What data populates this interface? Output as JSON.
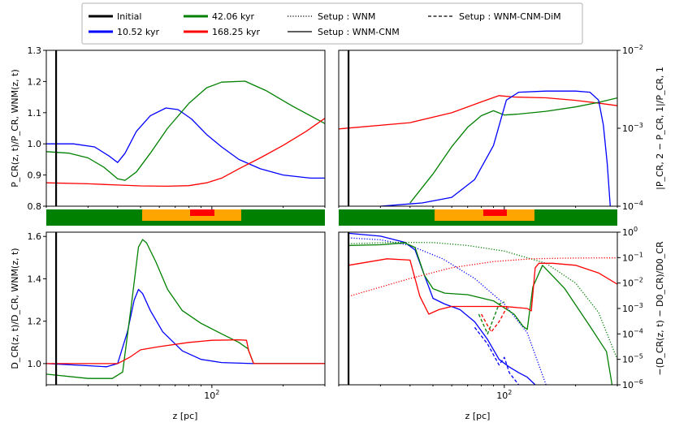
{
  "legend": {
    "entries": [
      {
        "label": "Initial",
        "color": "#000000",
        "style": "solid-thick"
      },
      {
        "label": "10.52 kyr",
        "color": "#0000ff",
        "style": "solid-thick"
      },
      {
        "label": "42.06 kyr",
        "color": "#008000",
        "style": "solid-thick"
      },
      {
        "label": "168.25 kyr",
        "color": "#ff0000",
        "style": "solid-thick"
      },
      {
        "label": "Setup : WNM",
        "color": "#000000",
        "style": "dotted"
      },
      {
        "label": "Setup : WNM-CNM",
        "color": "#000000",
        "style": "solid"
      },
      {
        "label": "Setup : WNM-CNM-DiM",
        "color": "#000000",
        "style": "dashed"
      }
    ]
  },
  "phase_bar": {
    "label_colors": {
      "wnm": "#008000",
      "cnm": "#ffa500",
      "dim": "#ff0000"
    }
  },
  "chart_data": [
    {
      "id": "top-left",
      "type": "line",
      "xscale": "log",
      "xlim": [
        20,
        300
      ],
      "ylim": [
        0.8,
        1.3
      ],
      "ylabel": "P_CR(z, t)/P_CR, WNM(z, t)",
      "yticks": [
        "0.8",
        "0.9",
        "1.0",
        "1.1",
        "1.2",
        "1.3"
      ],
      "initial_z": 22,
      "series": [
        {
          "name": "10.52 kyr",
          "color": "#0000ff",
          "points": [
            [
              20,
              1.0
            ],
            [
              26,
              1.0
            ],
            [
              32,
              0.99
            ],
            [
              37,
              0.96
            ],
            [
              40,
              0.94
            ],
            [
              43,
              0.97
            ],
            [
              48,
              1.04
            ],
            [
              55,
              1.09
            ],
            [
              64,
              1.115
            ],
            [
              72,
              1.11
            ],
            [
              82,
              1.08
            ],
            [
              95,
              1.03
            ],
            [
              110,
              0.99
            ],
            [
              130,
              0.95
            ],
            [
              160,
              0.92
            ],
            [
              200,
              0.9
            ],
            [
              260,
              0.89
            ],
            [
              300,
              0.89
            ]
          ]
        },
        {
          "name": "42.06 kyr",
          "color": "#008000",
          "points": [
            [
              20,
              0.975
            ],
            [
              25,
              0.97
            ],
            [
              30,
              0.955
            ],
            [
              35,
              0.925
            ],
            [
              40,
              0.888
            ],
            [
              43,
              0.883
            ],
            [
              48,
              0.91
            ],
            [
              55,
              0.97
            ],
            [
              65,
              1.05
            ],
            [
              80,
              1.13
            ],
            [
              95,
              1.18
            ],
            [
              110,
              1.198
            ],
            [
              138,
              1.201
            ],
            [
              170,
              1.17
            ],
            [
              220,
              1.12
            ],
            [
              300,
              1.065
            ]
          ]
        },
        {
          "name": "168.25 kyr",
          "color": "#ff0000",
          "points": [
            [
              20,
              0.875
            ],
            [
              30,
              0.872
            ],
            [
              40,
              0.868
            ],
            [
              50,
              0.865
            ],
            [
              65,
              0.864
            ],
            [
              80,
              0.866
            ],
            [
              95,
              0.875
            ],
            [
              110,
              0.89
            ],
            [
              130,
              0.92
            ],
            [
              160,
              0.955
            ],
            [
              200,
              0.995
            ],
            [
              250,
              1.04
            ],
            [
              300,
              1.082
            ]
          ]
        }
      ]
    },
    {
      "id": "top-right",
      "type": "line",
      "xscale": "log",
      "yscale": "log",
      "xlim": [
        20,
        300
      ],
      "ylim": [
        0.0001,
        0.01
      ],
      "ylabel": "|P_CR, 2 − P_CR, 1|/P_CR, 1",
      "yticks": [
        "10^-4",
        "10^-3",
        "10^-2"
      ],
      "initial_z": 22,
      "series": [
        {
          "name": "168.25 kyr",
          "color": "#ff0000",
          "points": [
            [
              20,
              0.00098
            ],
            [
              40,
              0.00118
            ],
            [
              60,
              0.00158
            ],
            [
              80,
              0.00218
            ],
            [
              95,
              0.00262
            ],
            [
              110,
              0.00252
            ],
            [
              150,
              0.00246
            ],
            [
              200,
              0.00228
            ],
            [
              260,
              0.00207
            ],
            [
              300,
              0.00195
            ]
          ]
        },
        {
          "name": "42.06 kyr",
          "color": "#008000",
          "points": [
            [
              40,
              0.00011
            ],
            [
              50,
              0.00026
            ],
            [
              60,
              0.00058
            ],
            [
              70,
              0.00103
            ],
            [
              80,
              0.00145
            ],
            [
              90,
              0.00168
            ],
            [
              100,
              0.00148
            ],
            [
              115,
              0.00152
            ],
            [
              150,
              0.00165
            ],
            [
              200,
              0.00188
            ],
            [
              250,
              0.00215
            ],
            [
              300,
              0.00245
            ]
          ]
        },
        {
          "name": "10.52 kyr",
          "color": "#0000ff",
          "points": [
            [
              30,
              0.0001
            ],
            [
              45,
              0.00011
            ],
            [
              60,
              0.00013
            ],
            [
              75,
              0.00022
            ],
            [
              90,
              0.0006
            ],
            [
              102,
              0.0023
            ],
            [
              115,
              0.0029
            ],
            [
              150,
              0.003
            ],
            [
              200,
              0.003
            ],
            [
              230,
              0.0029
            ],
            [
              250,
              0.0023
            ],
            [
              262,
              0.0011
            ],
            [
              272,
              0.00035
            ],
            [
              280,
              0.0001
            ]
          ]
        }
      ]
    },
    {
      "id": "bottom-left",
      "type": "line",
      "xscale": "log",
      "xlim": [
        20,
        300
      ],
      "ylim": [
        0.9,
        1.62
      ],
      "xlabel": "z [pc]",
      "ylabel": "D_CR(z, t)/D_CR, WNM(z, t)",
      "xticks": [
        "10^2"
      ],
      "yticks": [
        "1.0",
        "1.2",
        "1.4",
        "1.6"
      ],
      "initial_z": 22,
      "series": [
        {
          "name": "10.52 kyr",
          "color": "#0000ff",
          "points": [
            [
              20,
              1.0
            ],
            [
              30,
              0.99
            ],
            [
              36,
              0.985
            ],
            [
              40,
              1.0
            ],
            [
              44,
              1.15
            ],
            [
              47,
              1.3
            ],
            [
              49,
              1.35
            ],
            [
              51,
              1.33
            ],
            [
              55,
              1.25
            ],
            [
              62,
              1.15
            ],
            [
              75,
              1.06
            ],
            [
              90,
              1.02
            ],
            [
              110,
              1.005
            ],
            [
              150,
              1.0
            ],
            [
              300,
              1.0
            ]
          ]
        },
        {
          "name": "42.06 kyr",
          "color": "#008000",
          "points": [
            [
              20,
              0.95
            ],
            [
              30,
              0.93
            ],
            [
              38,
              0.93
            ],
            [
              42,
              0.96
            ],
            [
              46,
              1.3
            ],
            [
              49,
              1.55
            ],
            [
              51,
              1.585
            ],
            [
              53,
              1.57
            ],
            [
              58,
              1.48
            ],
            [
              65,
              1.35
            ],
            [
              75,
              1.25
            ],
            [
              90,
              1.19
            ],
            [
              110,
              1.14
            ],
            [
              130,
              1.1
            ],
            [
              142,
              1.07
            ],
            [
              150,
              1.0
            ],
            [
              300,
              1.0
            ]
          ]
        },
        {
          "name": "168.25 kyr",
          "color": "#ff0000",
          "points": [
            [
              20,
              1.0
            ],
            [
              40,
              1.0
            ],
            [
              45,
              1.03
            ],
            [
              50,
              1.065
            ],
            [
              60,
              1.08
            ],
            [
              80,
              1.1
            ],
            [
              100,
              1.11
            ],
            [
              130,
              1.112
            ],
            [
              140,
              1.11
            ],
            [
              143,
              1.06
            ],
            [
              150,
              1.0
            ],
            [
              300,
              1.0
            ]
          ]
        }
      ]
    },
    {
      "id": "bottom-right",
      "type": "line",
      "xscale": "log",
      "yscale": "log",
      "xlim": [
        20,
        300
      ],
      "ylim": [
        1e-06,
        1
      ],
      "xlabel": "z [pc]",
      "ylabel": "−(D_CR(z, t) − D0_CR)/D0_CR",
      "xticks": [
        "10^2"
      ],
      "yticks": [
        "10^-6",
        "10^-5",
        "10^-4",
        "10^-3",
        "10^-2",
        "10^-1",
        "10^0"
      ],
      "initial_z": 22,
      "series": [
        {
          "name": "10.52 kyr WNM-CNM",
          "color": "#0000ff",
          "style": "solid",
          "points": [
            [
              22,
              0.9
            ],
            [
              30,
              0.7
            ],
            [
              38,
              0.4
            ],
            [
              42,
              0.2
            ],
            [
              46,
              0.02
            ],
            [
              50,
              0.0025
            ],
            [
              56,
              0.0015
            ],
            [
              65,
              0.0009
            ],
            [
              75,
              0.0003
            ],
            [
              85,
              6e-05
            ],
            [
              95,
              1e-05
            ],
            [
              105,
              5e-06
            ],
            [
              115,
              3e-06
            ],
            [
              125,
              2e-06
            ],
            [
              135,
              1e-06
            ]
          ]
        },
        {
          "name": "10.52 kyr WNM-CNM-DiM",
          "color": "#0000ff",
          "style": "dashed",
          "points": [
            [
              75,
              0.00018
            ],
            [
              85,
              4e-05
            ],
            [
              95,
              6e-06
            ],
            [
              100,
              1.2e-05
            ],
            [
              105,
              3e-06
            ],
            [
              115,
              1e-06
            ]
          ]
        },
        {
          "name": "10.52 kyr WNM",
          "color": "#0000ff",
          "style": "dotted",
          "points": [
            [
              22,
              0.6
            ],
            [
              30,
              0.5
            ],
            [
              40,
              0.3
            ],
            [
              55,
              0.09
            ],
            [
              75,
              0.015
            ],
            [
              100,
              0.0015
            ],
            [
              125,
              0.00011
            ],
            [
              150,
              1e-06
            ]
          ]
        },
        {
          "name": "42.06 kyr WNM-CNM",
          "color": "#008000",
          "style": "solid",
          "points": [
            [
              22,
              0.3
            ],
            [
              30,
              0.32
            ],
            [
              38,
              0.38
            ],
            [
              42,
              0.25
            ],
            [
              46,
              0.02
            ],
            [
              50,
              0.006
            ],
            [
              56,
              0.004
            ],
            [
              70,
              0.0035
            ],
            [
              90,
              0.002
            ],
            [
              110,
              0.0006
            ],
            [
              120,
              0.0002
            ],
            [
              125,
              0.00015
            ],
            [
              132,
              0.007
            ],
            [
              145,
              0.05
            ],
            [
              180,
              0.006
            ],
            [
              230,
              0.0002
            ],
            [
              270,
              2e-05
            ],
            [
              285,
              1e-06
            ]
          ]
        },
        {
          "name": "42.06 kyr WNM-CNM-DiM",
          "color": "#008000",
          "style": "dashed",
          "points": [
            [
              78,
              0.0006
            ],
            [
              85,
              0.0001
            ],
            [
              95,
              0.0015
            ],
            [
              100,
              0.0018
            ]
          ]
        },
        {
          "name": "42.06 kyr WNM",
          "color": "#008000",
          "style": "dotted",
          "points": [
            [
              22,
              0.35
            ],
            [
              35,
              0.4
            ],
            [
              50,
              0.39
            ],
            [
              70,
              0.3
            ],
            [
              100,
              0.18
            ],
            [
              150,
              0.06
            ],
            [
              200,
              0.01
            ],
            [
              250,
              0.0007
            ],
            [
              300,
              1e-05
            ]
          ]
        },
        {
          "name": "168.25 kyr WNM-CNM",
          "color": "#ff0000",
          "style": "solid",
          "points": [
            [
              22,
              0.05
            ],
            [
              32,
              0.09
            ],
            [
              40,
              0.08
            ],
            [
              44,
              0.003
            ],
            [
              48,
              0.0006
            ],
            [
              53,
              0.0009
            ],
            [
              60,
              0.0012
            ],
            [
              80,
              0.0012
            ],
            [
              100,
              0.0012
            ],
            [
              125,
              0.001
            ],
            [
              130,
              0.0008
            ],
            [
              135,
              0.04
            ],
            [
              140,
              0.06
            ],
            [
              160,
              0.06
            ],
            [
              200,
              0.05
            ],
            [
              250,
              0.025
            ],
            [
              300,
              0.009
            ]
          ]
        },
        {
          "name": "168.25 kyr WNM-CNM-DiM",
          "color": "#ff0000",
          "style": "dashed",
          "points": [
            [
              80,
              0.0006
            ],
            [
              88,
              0.00012
            ],
            [
              95,
              0.0003
            ],
            [
              103,
              0.0012
            ]
          ]
        },
        {
          "name": "168.25 kyr WNM",
          "color": "#ff0000",
          "style": "dotted",
          "points": [
            [
              22,
              0.003
            ],
            [
              40,
              0.015
            ],
            [
              60,
              0.04
            ],
            [
              90,
              0.07
            ],
            [
              130,
              0.09
            ],
            [
              180,
              0.095
            ],
            [
              250,
              0.097
            ],
            [
              300,
              0.097
            ]
          ]
        }
      ]
    }
  ]
}
